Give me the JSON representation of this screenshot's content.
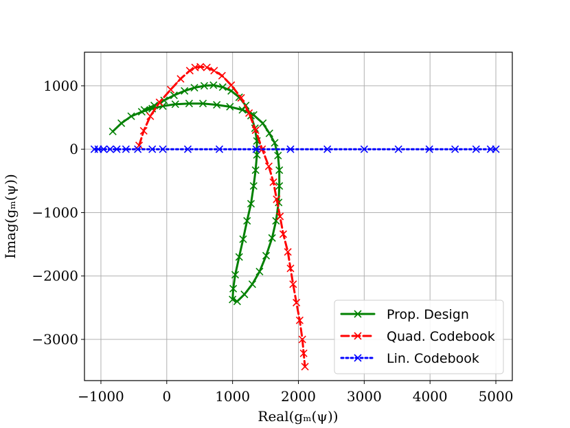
{
  "chart_data": {
    "type": "line",
    "title": "",
    "xlabel": "Real(gₘ(ψ))",
    "ylabel": "Imag(gₘ(ψ))",
    "xlim": [
      -1250,
      5250
    ],
    "ylim": [
      -3650,
      1530
    ],
    "xticks": [
      -1000,
      0,
      1000,
      2000,
      3000,
      4000,
      5000
    ],
    "xtick_labels": [
      "−1000",
      "0",
      "1000",
      "2000",
      "3000",
      "4000",
      "5000"
    ],
    "yticks": [
      1000,
      0,
      -1000,
      -2000,
      -3000
    ],
    "ytick_labels": [
      "1000",
      "0",
      "−1000",
      "−2000",
      "−3000"
    ],
    "grid": true,
    "legend_position": "lower-right",
    "series": [
      {
        "name": "Prop. Design",
        "color": "#008000",
        "linestyle": "solid",
        "marker": "x",
        "points": [
          [
            -820,
            280
          ],
          [
            -690,
            410
          ],
          [
            -540,
            520
          ],
          [
            -380,
            590
          ],
          [
            -220,
            640
          ],
          [
            -60,
            680
          ],
          [
            130,
            710
          ],
          [
            340,
            720
          ],
          [
            550,
            720
          ],
          [
            760,
            700
          ],
          [
            960,
            670
          ],
          [
            1150,
            620
          ],
          [
            1320,
            540
          ],
          [
            1460,
            410
          ],
          [
            1560,
            250
          ],
          [
            1640,
            100
          ],
          [
            1690,
            -100
          ],
          [
            1710,
            -330
          ],
          [
            1710,
            -580
          ],
          [
            1700,
            -840
          ],
          [
            1660,
            -1130
          ],
          [
            1600,
            -1400
          ],
          [
            1510,
            -1680
          ],
          [
            1410,
            -1930
          ],
          [
            1300,
            -2130
          ],
          [
            1180,
            -2290
          ],
          [
            1070,
            -2400
          ],
          [
            1000,
            -2370
          ],
          [
            1010,
            -2200
          ],
          [
            1040,
            -1980
          ],
          [
            1100,
            -1700
          ],
          [
            1160,
            -1420
          ],
          [
            1220,
            -1130
          ],
          [
            1280,
            -860
          ],
          [
            1320,
            -580
          ],
          [
            1350,
            -330
          ],
          [
            1370,
            -90
          ],
          [
            1370,
            130
          ],
          [
            1340,
            330
          ],
          [
            1280,
            530
          ],
          [
            1200,
            690
          ],
          [
            1100,
            820
          ],
          [
            980,
            920
          ],
          [
            850,
            980
          ],
          [
            710,
            1010
          ],
          [
            570,
            1000
          ],
          [
            420,
            970
          ],
          [
            270,
            920
          ],
          [
            110,
            850
          ],
          [
            -40,
            770
          ],
          [
            -190,
            690
          ],
          [
            -340,
            620
          ]
        ]
      },
      {
        "name": "Quad. Codebook",
        "color": "#ff0000",
        "linestyle": "dashed",
        "marker": "x",
        "points": [
          [
            -420,
            60
          ],
          [
            -350,
            290
          ],
          [
            -250,
            520
          ],
          [
            -110,
            740
          ],
          [
            60,
            940
          ],
          [
            210,
            1110
          ],
          [
            350,
            1240
          ],
          [
            430,
            1290
          ],
          [
            510,
            1300
          ],
          [
            610,
            1290
          ],
          [
            720,
            1240
          ],
          [
            840,
            1160
          ],
          [
            980,
            1010
          ],
          [
            1130,
            810
          ],
          [
            1250,
            570
          ],
          [
            1350,
            300
          ],
          [
            1450,
            0
          ],
          [
            1550,
            -270
          ],
          [
            1620,
            -520
          ],
          [
            1670,
            -790
          ],
          [
            1720,
            -1060
          ],
          [
            1770,
            -1340
          ],
          [
            1840,
            -1620
          ],
          [
            1880,
            -1880
          ],
          [
            1920,
            -2130
          ],
          [
            1970,
            -2420
          ],
          [
            2020,
            -2700
          ],
          [
            2060,
            -3000
          ],
          [
            2080,
            -3220
          ],
          [
            2100,
            -3430
          ]
        ]
      },
      {
        "name": "Lin. Codebook",
        "color": "#0000ff",
        "linestyle": "dotted",
        "marker": "x",
        "points": [
          [
            -1100,
            0
          ],
          [
            -1040,
            0
          ],
          [
            -960,
            0
          ],
          [
            -860,
            0
          ],
          [
            -760,
            0
          ],
          [
            -620,
            0
          ],
          [
            -440,
            0
          ],
          [
            -220,
            0
          ],
          [
            -60,
            0
          ],
          [
            320,
            0
          ],
          [
            800,
            0
          ],
          [
            1360,
            0
          ],
          [
            1880,
            0
          ],
          [
            2440,
            0
          ],
          [
            3000,
            0
          ],
          [
            3520,
            0
          ],
          [
            3990,
            0
          ],
          [
            4380,
            0
          ],
          [
            4700,
            0
          ],
          [
            4920,
            0
          ],
          [
            5000,
            0
          ]
        ]
      }
    ]
  }
}
